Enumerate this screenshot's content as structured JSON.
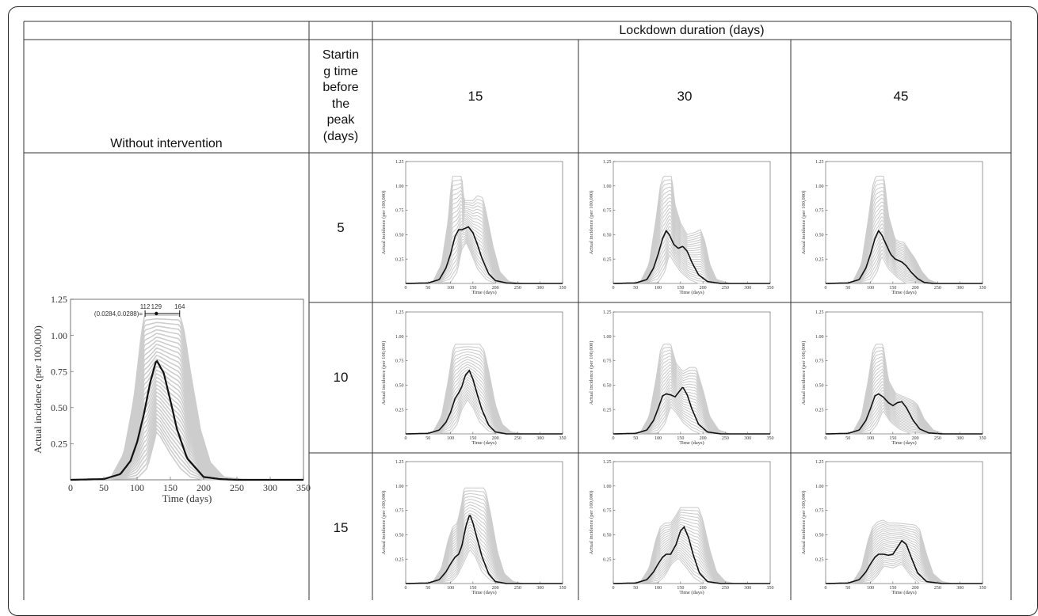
{
  "table": {
    "header_span": "Lockdown duration (days)",
    "col_without": "Without intervention",
    "col_start": "Startin\ng time\nbefore\nthe\npeak\n(days)",
    "durations": [
      "15",
      "30",
      "45"
    ],
    "start_times": [
      "5",
      "10",
      "15"
    ]
  },
  "chart_data": [
    {
      "type": "line",
      "panel": "without-intervention",
      "xlabel": "Time (days)",
      "ylabel": "Actual incidence (per 100,000)",
      "xlim": [
        0,
        350
      ],
      "ylim": [
        0,
        1.25
      ],
      "xticks": [
        0,
        50,
        100,
        150,
        200,
        250,
        300,
        350
      ],
      "yticks": [
        0.25,
        0.5,
        0.75,
        1.0,
        1.25
      ],
      "ytick_labels": [
        "0.25",
        "0.50",
        "0.75",
        "1.00",
        "1.25"
      ],
      "annotation": {
        "label": "(0.0284,0.0288)=",
        "points": [
          "112",
          "129",
          "164"
        ]
      },
      "mean_curve": {
        "x": [
          0,
          50,
          75,
          90,
          100,
          110,
          120,
          129,
          140,
          150,
          160,
          175,
          200,
          225,
          250,
          350
        ],
        "y": [
          0,
          0.005,
          0.04,
          0.13,
          0.26,
          0.45,
          0.68,
          0.83,
          0.74,
          0.55,
          0.35,
          0.15,
          0.02,
          0.005,
          0,
          0
        ]
      },
      "band_top": {
        "x": [
          0,
          60,
          80,
          95,
          105,
          110,
          112,
          164,
          170,
          180,
          195,
          210,
          230,
          260,
          350
        ],
        "y": [
          0,
          0.01,
          0.18,
          0.55,
          0.95,
          1.12,
          1.14,
          1.14,
          1.05,
          0.75,
          0.35,
          0.12,
          0.02,
          0,
          0
        ]
      },
      "band_bottom": {
        "x": [
          0,
          100,
          115,
          125,
          129,
          135,
          150,
          165,
          180,
          200,
          350
        ],
        "y": [
          0,
          0.01,
          0.08,
          0.25,
          0.33,
          0.3,
          0.18,
          0.08,
          0.02,
          0,
          0
        ]
      }
    },
    {
      "type": "line",
      "panel": "start-5-duration-15",
      "xlabel": "Time (days)",
      "ylabel": "Actual incidence (per 100,000)",
      "xlim": [
        0,
        350
      ],
      "ylim": [
        0,
        1.25
      ],
      "mean_curve": {
        "x": [
          0,
          50,
          75,
          90,
          100,
          110,
          118,
          125,
          130,
          140,
          150,
          160,
          170,
          185,
          200,
          225,
          250,
          350
        ],
        "y": [
          0,
          0.005,
          0.04,
          0.16,
          0.3,
          0.48,
          0.55,
          0.55,
          0.56,
          0.58,
          0.52,
          0.4,
          0.26,
          0.1,
          0.03,
          0.005,
          0,
          0
        ]
      },
      "band_top": {
        "x": [
          0,
          60,
          80,
          95,
          100,
          105,
          125,
          130,
          150,
          160,
          172,
          180,
          195,
          210,
          230,
          260,
          350
        ],
        "y": [
          0,
          0.01,
          0.2,
          0.65,
          0.95,
          1.1,
          1.1,
          0.85,
          0.85,
          0.9,
          0.88,
          0.72,
          0.38,
          0.12,
          0.02,
          0,
          0
        ]
      },
      "band_bottom": {
        "x": [
          0,
          100,
          115,
          125,
          135,
          145,
          160,
          180,
          200,
          350
        ],
        "y": [
          0,
          0.01,
          0.12,
          0.35,
          0.42,
          0.32,
          0.15,
          0.04,
          0,
          0
        ]
      }
    },
    {
      "type": "line",
      "panel": "start-5-duration-30",
      "xlabel": "Time (days)",
      "ylabel": "Actual incidence (per 100,000)",
      "xlim": [
        0,
        350
      ],
      "ylim": [
        0,
        1.25
      ],
      "mean_curve": {
        "x": [
          0,
          50,
          75,
          90,
          100,
          110,
          118,
          125,
          135,
          145,
          155,
          165,
          175,
          190,
          210,
          240,
          350
        ],
        "y": [
          0,
          0.005,
          0.04,
          0.16,
          0.3,
          0.46,
          0.54,
          0.5,
          0.4,
          0.36,
          0.38,
          0.33,
          0.22,
          0.09,
          0.02,
          0,
          0
        ]
      },
      "band_top": {
        "x": [
          0,
          60,
          80,
          95,
          105,
          112,
          130,
          138,
          150,
          165,
          180,
          195,
          205,
          215,
          230,
          260,
          350
        ],
        "y": [
          0,
          0.01,
          0.2,
          0.65,
          1.0,
          1.1,
          1.1,
          0.8,
          0.62,
          0.5,
          0.52,
          0.55,
          0.42,
          0.2,
          0.04,
          0,
          0
        ]
      },
      "band_bottom": {
        "x": [
          0,
          100,
          115,
          125,
          135,
          150,
          170,
          190,
          350
        ],
        "y": [
          0,
          0.01,
          0.12,
          0.3,
          0.22,
          0.12,
          0.04,
          0,
          0
        ]
      }
    },
    {
      "type": "line",
      "panel": "start-5-duration-45",
      "xlabel": "Time (days)",
      "ylabel": "Actual incidence (per 100,000)",
      "xlim": [
        0,
        350
      ],
      "ylim": [
        0,
        1.25
      ],
      "mean_curve": {
        "x": [
          0,
          50,
          75,
          90,
          100,
          110,
          118,
          125,
          135,
          145,
          155,
          170,
          180,
          190,
          205,
          220,
          240,
          350
        ],
        "y": [
          0,
          0.005,
          0.04,
          0.16,
          0.3,
          0.46,
          0.54,
          0.5,
          0.4,
          0.3,
          0.25,
          0.22,
          0.18,
          0.12,
          0.05,
          0.01,
          0,
          0
        ]
      },
      "band_top": {
        "x": [
          0,
          60,
          80,
          95,
          105,
          112,
          130,
          140,
          155,
          165,
          175,
          185,
          200,
          215,
          230,
          250,
          350
        ],
        "y": [
          0,
          0.01,
          0.2,
          0.65,
          1.0,
          1.1,
          1.1,
          0.7,
          0.45,
          0.43,
          0.42,
          0.35,
          0.25,
          0.12,
          0.04,
          0,
          0
        ]
      },
      "band_bottom": {
        "x": [
          0,
          100,
          115,
          125,
          140,
          160,
          180,
          350
        ],
        "y": [
          0,
          0.01,
          0.12,
          0.28,
          0.15,
          0.06,
          0,
          0
        ]
      }
    },
    {
      "type": "line",
      "panel": "start-10-duration-15",
      "xlabel": "Time (days)",
      "ylabel": "Actual incidence (per 100,000)",
      "xlim": [
        0,
        350
      ],
      "ylim": [
        0,
        1.25
      ],
      "mean_curve": {
        "x": [
          0,
          50,
          75,
          90,
          100,
          110,
          118,
          125,
          133,
          142,
          150,
          160,
          170,
          185,
          200,
          225,
          350
        ],
        "y": [
          0,
          0.005,
          0.04,
          0.12,
          0.22,
          0.36,
          0.42,
          0.48,
          0.6,
          0.65,
          0.56,
          0.4,
          0.25,
          0.09,
          0.02,
          0,
          0
        ]
      },
      "band_top": {
        "x": [
          0,
          60,
          80,
          95,
          105,
          110,
          125,
          135,
          165,
          175,
          185,
          200,
          215,
          235,
          260,
          350
        ],
        "y": [
          0,
          0.01,
          0.18,
          0.55,
          0.85,
          0.92,
          0.92,
          0.92,
          0.92,
          0.86,
          0.65,
          0.3,
          0.1,
          0.02,
          0,
          0
        ]
      },
      "band_bottom": {
        "x": [
          0,
          100,
          115,
          125,
          138,
          150,
          165,
          185,
          205,
          350
        ],
        "y": [
          0,
          0.01,
          0.1,
          0.25,
          0.35,
          0.27,
          0.12,
          0.03,
          0,
          0
        ]
      }
    },
    {
      "type": "line",
      "panel": "start-10-duration-30",
      "xlabel": "Time (days)",
      "ylabel": "Actual incidence (per 100,000)",
      "xlim": [
        0,
        350
      ],
      "ylim": [
        0,
        1.25
      ],
      "mean_curve": {
        "x": [
          0,
          50,
          75,
          90,
          100,
          110,
          118,
          128,
          138,
          148,
          155,
          165,
          175,
          190,
          210,
          240,
          350
        ],
        "y": [
          0,
          0.005,
          0.04,
          0.14,
          0.26,
          0.39,
          0.41,
          0.4,
          0.38,
          0.44,
          0.48,
          0.4,
          0.26,
          0.1,
          0.02,
          0,
          0
        ]
      },
      "band_top": {
        "x": [
          0,
          60,
          80,
          95,
          105,
          112,
          128,
          140,
          155,
          170,
          185,
          200,
          215,
          235,
          260,
          350
        ],
        "y": [
          0,
          0.01,
          0.18,
          0.55,
          0.85,
          0.92,
          0.92,
          0.72,
          0.64,
          0.68,
          0.68,
          0.45,
          0.18,
          0.04,
          0,
          0
        ]
      },
      "band_bottom": {
        "x": [
          0,
          100,
          115,
          128,
          140,
          155,
          175,
          195,
          350
        ],
        "y": [
          0,
          0.01,
          0.1,
          0.28,
          0.22,
          0.12,
          0.04,
          0,
          0
        ]
      }
    },
    {
      "type": "line",
      "panel": "start-10-duration-45",
      "xlabel": "Time (days)",
      "ylabel": "Actual incidence (per 100,000)",
      "xlim": [
        0,
        350
      ],
      "ylim": [
        0,
        1.25
      ],
      "mean_curve": {
        "x": [
          0,
          50,
          75,
          90,
          100,
          110,
          118,
          128,
          140,
          150,
          160,
          170,
          180,
          195,
          210,
          230,
          260,
          350
        ],
        "y": [
          0,
          0.005,
          0.04,
          0.14,
          0.26,
          0.39,
          0.41,
          0.38,
          0.32,
          0.29,
          0.32,
          0.33,
          0.27,
          0.14,
          0.05,
          0.01,
          0,
          0
        ]
      },
      "band_top": {
        "x": [
          0,
          60,
          80,
          95,
          105,
          112,
          128,
          140,
          155,
          175,
          195,
          205,
          220,
          240,
          265,
          350
        ],
        "y": [
          0,
          0.01,
          0.18,
          0.55,
          0.85,
          0.92,
          0.92,
          0.55,
          0.42,
          0.38,
          0.34,
          0.3,
          0.15,
          0.04,
          0,
          0
        ]
      },
      "band_bottom": {
        "x": [
          0,
          100,
          115,
          128,
          145,
          165,
          190,
          350
        ],
        "y": [
          0,
          0.01,
          0.1,
          0.24,
          0.12,
          0.05,
          0,
          0
        ]
      }
    },
    {
      "type": "line",
      "panel": "start-15-duration-15",
      "xlabel": "Time (days)",
      "ylabel": "Actual incidence (per 100,000)",
      "xlim": [
        0,
        350
      ],
      "ylim": [
        0,
        1.25
      ],
      "mean_curve": {
        "x": [
          0,
          50,
          75,
          90,
          100,
          110,
          118,
          125,
          135,
          143,
          150,
          160,
          170,
          185,
          200,
          225,
          350
        ],
        "y": [
          0,
          0.005,
          0.04,
          0.12,
          0.2,
          0.27,
          0.3,
          0.38,
          0.6,
          0.71,
          0.62,
          0.45,
          0.28,
          0.1,
          0.02,
          0,
          0
        ]
      },
      "band_top": {
        "x": [
          0,
          60,
          80,
          95,
          105,
          115,
          125,
          130,
          175,
          180,
          190,
          205,
          220,
          240,
          260,
          350
        ],
        "y": [
          0,
          0.01,
          0.16,
          0.45,
          0.58,
          0.62,
          0.82,
          0.98,
          0.98,
          0.92,
          0.7,
          0.32,
          0.1,
          0.02,
          0,
          0
        ]
      },
      "band_bottom": {
        "x": [
          0,
          100,
          115,
          130,
          143,
          155,
          170,
          190,
          210,
          350
        ],
        "y": [
          0,
          0.01,
          0.08,
          0.22,
          0.35,
          0.28,
          0.12,
          0.03,
          0,
          0
        ]
      }
    },
    {
      "type": "line",
      "panel": "start-15-duration-30",
      "xlabel": "Time (days)",
      "ylabel": "Actual incidence (per 100,000)",
      "xlim": [
        0,
        350
      ],
      "ylim": [
        0,
        1.25
      ],
      "mean_curve": {
        "x": [
          0,
          50,
          75,
          90,
          100,
          110,
          118,
          128,
          140,
          150,
          158,
          168,
          178,
          192,
          210,
          240,
          350
        ],
        "y": [
          0,
          0.005,
          0.04,
          0.12,
          0.2,
          0.27,
          0.3,
          0.3,
          0.4,
          0.54,
          0.58,
          0.47,
          0.3,
          0.11,
          0.02,
          0,
          0
        ]
      },
      "band_top": {
        "x": [
          0,
          60,
          80,
          95,
          105,
          115,
          128,
          140,
          150,
          190,
          200,
          215,
          230,
          250,
          270,
          350
        ],
        "y": [
          0,
          0.01,
          0.16,
          0.45,
          0.58,
          0.62,
          0.62,
          0.7,
          0.78,
          0.78,
          0.65,
          0.35,
          0.12,
          0.02,
          0,
          0
        ]
      },
      "band_bottom": {
        "x": [
          0,
          100,
          115,
          130,
          145,
          160,
          180,
          200,
          350
        ],
        "y": [
          0,
          0.01,
          0.08,
          0.2,
          0.26,
          0.18,
          0.06,
          0,
          0
        ]
      }
    },
    {
      "type": "line",
      "panel": "start-15-duration-45",
      "xlabel": "Time (days)",
      "ylabel": "Actual incidence (per 100,000)",
      "xlim": [
        0,
        350
      ],
      "ylim": [
        0,
        1.25
      ],
      "mean_curve": {
        "x": [
          0,
          50,
          75,
          90,
          100,
          110,
          118,
          130,
          140,
          150,
          160,
          170,
          180,
          190,
          205,
          225,
          260,
          350
        ],
        "y": [
          0,
          0.005,
          0.04,
          0.12,
          0.2,
          0.27,
          0.3,
          0.3,
          0.29,
          0.3,
          0.37,
          0.44,
          0.4,
          0.28,
          0.11,
          0.02,
          0,
          0
        ]
      },
      "band_top": {
        "x": [
          0,
          60,
          80,
          95,
          105,
          115,
          128,
          140,
          160,
          200,
          210,
          225,
          240,
          260,
          280,
          350
        ],
        "y": [
          0,
          0.01,
          0.16,
          0.45,
          0.58,
          0.63,
          0.65,
          0.62,
          0.62,
          0.6,
          0.55,
          0.3,
          0.1,
          0.02,
          0,
          0
        ]
      },
      "band_bottom": {
        "x": [
          0,
          100,
          115,
          130,
          150,
          170,
          190,
          210,
          350
        ],
        "y": [
          0,
          0.01,
          0.08,
          0.18,
          0.16,
          0.2,
          0.08,
          0,
          0
        ]
      }
    }
  ]
}
